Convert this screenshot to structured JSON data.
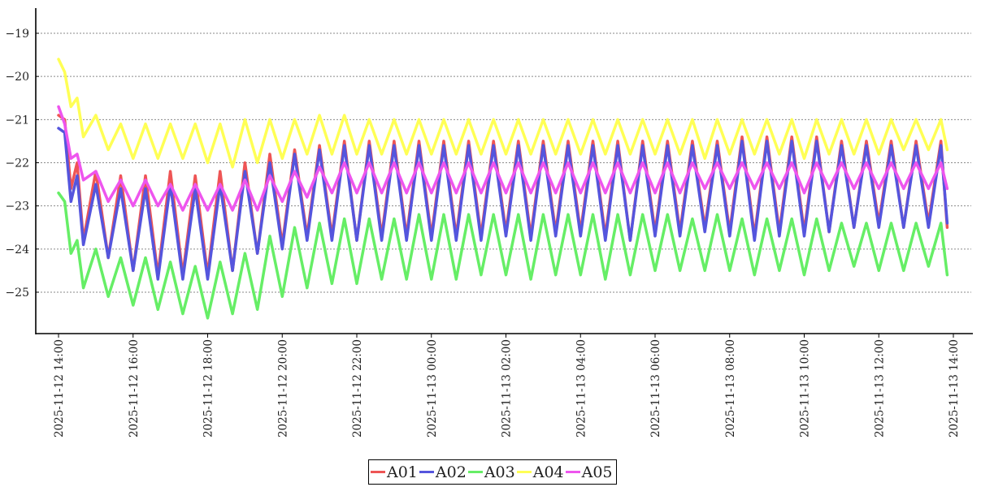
{
  "chart_data": {
    "type": "line",
    "title": "",
    "xlabel": "",
    "ylabel": "",
    "x_range": [
      "2025-11-12 14:00",
      "2025-11-13 14:00"
    ],
    "ylim": [
      -25.8,
      -18.4
    ],
    "yticks": [
      -19,
      -20,
      -21,
      -22,
      -23,
      -24,
      -25
    ],
    "ytick_labels": [
      "−19",
      "−20",
      "−21",
      "−22",
      "−23",
      "−24",
      "−25"
    ],
    "xticks": [
      "2025-11-12 14:00",
      "2025-11-12 16:00",
      "2025-11-12 18:00",
      "2025-11-12 20:00",
      "2025-11-12 22:00",
      "2025-11-13 00:00",
      "2025-11-13 02:00",
      "2025-11-13 04:00",
      "2025-11-13 06:00",
      "2025-11-13 08:00",
      "2025-11-13 10:00",
      "2025-11-13 12:00",
      "2025-11-13 14:00"
    ],
    "xtick_labels": [
      "2025-11-12 14:00",
      "2025-11-12 16:00",
      "2025-11-12 18:00",
      "2025-11-12 20:00",
      "2025-11-12 22:00",
      "2025-11-13 00:00",
      "2025-11-13 02:00",
      "2025-11-13 04:00",
      "2025-11-13 06:00",
      "2025-11-13 08:00",
      "2025-11-13 10:00",
      "2025-11-13 12:00",
      "2025-11-13 14:00"
    ],
    "grid": "horizontal dashed",
    "legend_position": "bottom-center",
    "series": [
      {
        "name": "A01",
        "color": "#ee5555",
        "x": [
          "2025-11-12 14:00",
          "2025-11-12 14:10",
          "2025-11-12 14:20",
          "2025-11-12 14:30",
          "2025-11-12 14:40",
          "2025-11-12 15:00",
          "2025-11-12 15:20",
          "2025-11-12 15:40",
          "2025-11-12 16:00",
          "2025-11-12 16:20",
          "2025-11-12 16:40",
          "2025-11-12 17:00",
          "2025-11-12 17:20",
          "2025-11-12 17:40",
          "2025-11-12 18:00",
          "2025-11-12 18:20",
          "2025-11-12 18:40",
          "2025-11-12 19:00",
          "2025-11-12 19:20",
          "2025-11-12 19:40",
          "2025-11-12 20:00",
          "2025-11-12 20:20",
          "2025-11-12 20:40",
          "2025-11-12 21:00",
          "2025-11-12 21:20",
          "2025-11-12 21:40",
          "2025-11-12 22:00",
          "2025-11-12 22:20",
          "2025-11-12 22:40",
          "2025-11-12 23:00",
          "2025-11-12 23:20",
          "2025-11-12 23:40",
          "2025-11-13 00:00",
          "2025-11-13 00:20",
          "2025-11-13 00:40",
          "2025-11-13 01:00",
          "2025-11-13 01:20",
          "2025-11-13 01:40",
          "2025-11-13 02:00",
          "2025-11-13 02:20",
          "2025-11-13 02:40",
          "2025-11-13 03:00",
          "2025-11-13 03:20",
          "2025-11-13 03:40",
          "2025-11-13 04:00",
          "2025-11-13 04:20",
          "2025-11-13 04:40",
          "2025-11-13 05:00",
          "2025-11-13 05:20",
          "2025-11-13 05:40",
          "2025-11-13 06:00",
          "2025-11-13 06:20",
          "2025-11-13 06:40",
          "2025-11-13 07:00",
          "2025-11-13 07:20",
          "2025-11-13 07:40",
          "2025-11-13 08:00",
          "2025-11-13 08:20",
          "2025-11-13 08:40",
          "2025-11-13 09:00",
          "2025-11-13 09:20",
          "2025-11-13 09:40",
          "2025-11-13 10:00",
          "2025-11-13 10:20",
          "2025-11-13 10:40",
          "2025-11-13 11:00",
          "2025-11-13 11:20",
          "2025-11-13 11:40",
          "2025-11-13 12:00",
          "2025-11-13 12:20",
          "2025-11-13 12:40",
          "2025-11-13 13:00",
          "2025-11-13 13:20",
          "2025-11-13 13:40",
          "2025-11-13 13:50"
        ],
        "values": [
          -20.9,
          -21.0,
          -22.6,
          -22.0,
          -23.8,
          -22.2,
          -24.2,
          -22.3,
          -24.5,
          -22.3,
          -24.6,
          -22.2,
          -24.6,
          -22.3,
          -24.6,
          -22.2,
          -24.5,
          -22.0,
          -24.1,
          -21.8,
          -23.9,
          -21.7,
          -23.7,
          -21.6,
          -23.7,
          -21.5,
          -23.8,
          -21.5,
          -23.7,
          -21.5,
          -23.7,
          -21.5,
          -23.7,
          -21.5,
          -23.7,
          -21.5,
          -23.7,
          -21.5,
          -23.6,
          -21.5,
          -23.7,
          -21.5,
          -23.6,
          -21.5,
          -23.6,
          -21.5,
          -23.7,
          -21.5,
          -23.8,
          -21.5,
          -23.6,
          -21.5,
          -23.6,
          -21.5,
          -23.5,
          -21.5,
          -23.6,
          -21.4,
          -23.7,
          -21.4,
          -23.6,
          -21.4,
          -23.6,
          -21.4,
          -23.6,
          -21.5,
          -23.5,
          -21.5,
          -23.4,
          -21.5,
          -23.5,
          -21.5,
          -23.4,
          -21.5,
          -23.5
        ]
      },
      {
        "name": "A02",
        "color": "#5555dd",
        "x": [
          "2025-11-12 14:00",
          "2025-11-12 14:10",
          "2025-11-12 14:20",
          "2025-11-12 14:30",
          "2025-11-12 14:40",
          "2025-11-12 15:00",
          "2025-11-12 15:20",
          "2025-11-12 15:40",
          "2025-11-12 16:00",
          "2025-11-12 16:20",
          "2025-11-12 16:40",
          "2025-11-12 17:00",
          "2025-11-12 17:20",
          "2025-11-12 17:40",
          "2025-11-12 18:00",
          "2025-11-12 18:20",
          "2025-11-12 18:40",
          "2025-11-12 19:00",
          "2025-11-12 19:20",
          "2025-11-12 19:40",
          "2025-11-12 20:00",
          "2025-11-12 20:20",
          "2025-11-12 20:40",
          "2025-11-12 21:00",
          "2025-11-12 21:20",
          "2025-11-12 21:40",
          "2025-11-12 22:00",
          "2025-11-12 22:20",
          "2025-11-12 22:40",
          "2025-11-12 23:00",
          "2025-11-12 23:20",
          "2025-11-12 23:40",
          "2025-11-13 00:00",
          "2025-11-13 00:20",
          "2025-11-13 00:40",
          "2025-11-13 01:00",
          "2025-11-13 01:20",
          "2025-11-13 01:40",
          "2025-11-13 02:00",
          "2025-11-13 02:20",
          "2025-11-13 02:40",
          "2025-11-13 03:00",
          "2025-11-13 03:20",
          "2025-11-13 03:40",
          "2025-11-13 04:00",
          "2025-11-13 04:20",
          "2025-11-13 04:40",
          "2025-11-13 05:00",
          "2025-11-13 05:20",
          "2025-11-13 05:40",
          "2025-11-13 06:00",
          "2025-11-13 06:20",
          "2025-11-13 06:40",
          "2025-11-13 07:00",
          "2025-11-13 07:20",
          "2025-11-13 07:40",
          "2025-11-13 08:00",
          "2025-11-13 08:20",
          "2025-11-13 08:40",
          "2025-11-13 09:00",
          "2025-11-13 09:20",
          "2025-11-13 09:40",
          "2025-11-13 10:00",
          "2025-11-13 10:20",
          "2025-11-13 10:40",
          "2025-11-13 11:00",
          "2025-11-13 11:20",
          "2025-11-13 11:40",
          "2025-11-13 12:00",
          "2025-11-13 12:20",
          "2025-11-13 12:40",
          "2025-11-13 13:00",
          "2025-11-13 13:20",
          "2025-11-13 13:40",
          "2025-11-13 13:50"
        ],
        "values": [
          -21.2,
          -21.3,
          -22.9,
          -22.3,
          -23.9,
          -22.5,
          -24.2,
          -22.6,
          -24.5,
          -22.6,
          -24.7,
          -22.5,
          -24.7,
          -22.6,
          -24.7,
          -22.5,
          -24.5,
          -22.2,
          -24.1,
          -22.0,
          -24.0,
          -21.8,
          -23.8,
          -21.7,
          -23.8,
          -21.6,
          -23.8,
          -21.6,
          -23.8,
          -21.6,
          -23.8,
          -21.6,
          -23.8,
          -21.6,
          -23.8,
          -21.6,
          -23.8,
          -21.6,
          -23.7,
          -21.6,
          -23.8,
          -21.6,
          -23.7,
          -21.6,
          -23.7,
          -21.6,
          -23.8,
          -21.6,
          -23.8,
          -21.6,
          -23.7,
          -21.6,
          -23.7,
          -21.6,
          -23.6,
          -21.6,
          -23.7,
          -21.5,
          -23.8,
          -21.5,
          -23.7,
          -21.5,
          -23.7,
          -21.5,
          -23.6,
          -21.6,
          -23.5,
          -21.6,
          -23.5,
          -21.6,
          -23.5,
          -21.6,
          -23.5,
          -21.6,
          -23.4
        ]
      },
      {
        "name": "A03",
        "color": "#66ee66",
        "x": [
          "2025-11-12 14:00",
          "2025-11-12 14:10",
          "2025-11-12 14:20",
          "2025-11-12 14:30",
          "2025-11-12 14:40",
          "2025-11-12 15:00",
          "2025-11-12 15:20",
          "2025-11-12 15:40",
          "2025-11-12 16:00",
          "2025-11-12 16:20",
          "2025-11-12 16:40",
          "2025-11-12 17:00",
          "2025-11-12 17:20",
          "2025-11-12 17:40",
          "2025-11-12 18:00",
          "2025-11-12 18:20",
          "2025-11-12 18:40",
          "2025-11-12 19:00",
          "2025-11-12 19:20",
          "2025-11-12 19:40",
          "2025-11-12 20:00",
          "2025-11-12 20:20",
          "2025-11-12 20:40",
          "2025-11-12 21:00",
          "2025-11-12 21:20",
          "2025-11-12 21:40",
          "2025-11-12 22:00",
          "2025-11-12 22:20",
          "2025-11-12 22:40",
          "2025-11-12 23:00",
          "2025-11-12 23:20",
          "2025-11-12 23:40",
          "2025-11-13 00:00",
          "2025-11-13 00:20",
          "2025-11-13 00:40",
          "2025-11-13 01:00",
          "2025-11-13 01:20",
          "2025-11-13 01:40",
          "2025-11-13 02:00",
          "2025-11-13 02:20",
          "2025-11-13 02:40",
          "2025-11-13 03:00",
          "2025-11-13 03:20",
          "2025-11-13 03:40",
          "2025-11-13 04:00",
          "2025-11-13 04:20",
          "2025-11-13 04:40",
          "2025-11-13 05:00",
          "2025-11-13 05:20",
          "2025-11-13 05:40",
          "2025-11-13 06:00",
          "2025-11-13 06:20",
          "2025-11-13 06:40",
          "2025-11-13 07:00",
          "2025-11-13 07:20",
          "2025-11-13 07:40",
          "2025-11-13 08:00",
          "2025-11-13 08:20",
          "2025-11-13 08:40",
          "2025-11-13 09:00",
          "2025-11-13 09:20",
          "2025-11-13 09:40",
          "2025-11-13 10:00",
          "2025-11-13 10:20",
          "2025-11-13 10:40",
          "2025-11-13 11:00",
          "2025-11-13 11:20",
          "2025-11-13 11:40",
          "2025-11-13 12:00",
          "2025-11-13 12:20",
          "2025-11-13 12:40",
          "2025-11-13 13:00",
          "2025-11-13 13:20",
          "2025-11-13 13:40",
          "2025-11-13 13:50"
        ],
        "values": [
          -22.7,
          -22.9,
          -24.1,
          -23.8,
          -24.9,
          -24.0,
          -25.1,
          -24.2,
          -25.3,
          -24.2,
          -25.4,
          -24.3,
          -25.5,
          -24.4,
          -25.6,
          -24.3,
          -25.5,
          -24.1,
          -25.4,
          -23.7,
          -25.1,
          -23.5,
          -24.9,
          -23.4,
          -24.8,
          -23.3,
          -24.8,
          -23.3,
          -24.7,
          -23.3,
          -24.7,
          -23.2,
          -24.7,
          -23.2,
          -24.7,
          -23.2,
          -24.6,
          -23.2,
          -24.6,
          -23.2,
          -24.7,
          -23.2,
          -24.6,
          -23.2,
          -24.6,
          -23.2,
          -24.7,
          -23.2,
          -24.6,
          -23.2,
          -24.5,
          -23.2,
          -24.5,
          -23.3,
          -24.5,
          -23.2,
          -24.5,
          -23.3,
          -24.6,
          -23.3,
          -24.5,
          -23.3,
          -24.6,
          -23.3,
          -24.5,
          -23.4,
          -24.4,
          -23.4,
          -24.5,
          -23.4,
          -24.5,
          -23.4,
          -24.4,
          -23.4,
          -24.6
        ]
      },
      {
        "name": "A04",
        "color": "#ffff55",
        "x": [
          "2025-11-12 14:00",
          "2025-11-12 14:10",
          "2025-11-12 14:20",
          "2025-11-12 14:30",
          "2025-11-12 14:40",
          "2025-11-12 15:00",
          "2025-11-12 15:20",
          "2025-11-12 15:40",
          "2025-11-12 16:00",
          "2025-11-12 16:20",
          "2025-11-12 16:40",
          "2025-11-12 17:00",
          "2025-11-12 17:20",
          "2025-11-12 17:40",
          "2025-11-12 18:00",
          "2025-11-12 18:20",
          "2025-11-12 18:40",
          "2025-11-12 19:00",
          "2025-11-12 19:20",
          "2025-11-12 19:40",
          "2025-11-12 20:00",
          "2025-11-12 20:20",
          "2025-11-12 20:40",
          "2025-11-12 21:00",
          "2025-11-12 21:20",
          "2025-11-12 21:40",
          "2025-11-12 22:00",
          "2025-11-12 22:20",
          "2025-11-12 22:40",
          "2025-11-12 23:00",
          "2025-11-12 23:20",
          "2025-11-12 23:40",
          "2025-11-13 00:00",
          "2025-11-13 00:20",
          "2025-11-13 00:40",
          "2025-11-13 01:00",
          "2025-11-13 01:20",
          "2025-11-13 01:40",
          "2025-11-13 02:00",
          "2025-11-13 02:20",
          "2025-11-13 02:40",
          "2025-11-13 03:00",
          "2025-11-13 03:20",
          "2025-11-13 03:40",
          "2025-11-13 04:00",
          "2025-11-13 04:20",
          "2025-11-13 04:40",
          "2025-11-13 05:00",
          "2025-11-13 05:20",
          "2025-11-13 05:40",
          "2025-11-13 06:00",
          "2025-11-13 06:20",
          "2025-11-13 06:40",
          "2025-11-13 07:00",
          "2025-11-13 07:20",
          "2025-11-13 07:40",
          "2025-11-13 08:00",
          "2025-11-13 08:20",
          "2025-11-13 08:40",
          "2025-11-13 09:00",
          "2025-11-13 09:20",
          "2025-11-13 09:40",
          "2025-11-13 10:00",
          "2025-11-13 10:20",
          "2025-11-13 10:40",
          "2025-11-13 11:00",
          "2025-11-13 11:20",
          "2025-11-13 11:40",
          "2025-11-13 12:00",
          "2025-11-13 12:20",
          "2025-11-13 12:40",
          "2025-11-13 13:00",
          "2025-11-13 13:20",
          "2025-11-13 13:40",
          "2025-11-13 13:50"
        ],
        "values": [
          -19.6,
          -19.9,
          -20.7,
          -20.5,
          -21.4,
          -20.9,
          -21.7,
          -21.1,
          -21.9,
          -21.1,
          -21.9,
          -21.1,
          -21.9,
          -21.1,
          -22.0,
          -21.1,
          -22.1,
          -21.0,
          -22.0,
          -21.0,
          -21.9,
          -21.0,
          -21.8,
          -20.9,
          -21.8,
          -20.9,
          -21.8,
          -21.0,
          -21.8,
          -21.0,
          -21.8,
          -21.0,
          -21.8,
          -21.0,
          -21.8,
          -21.0,
          -21.8,
          -21.0,
          -21.8,
          -21.0,
          -21.8,
          -21.0,
          -21.8,
          -21.0,
          -21.8,
          -21.0,
          -21.8,
          -21.0,
          -21.8,
          -21.0,
          -21.8,
          -21.0,
          -21.8,
          -21.0,
          -21.9,
          -21.0,
          -21.8,
          -21.0,
          -21.8,
          -21.0,
          -21.8,
          -21.0,
          -21.9,
          -21.0,
          -21.8,
          -21.0,
          -21.8,
          -21.0,
          -21.8,
          -21.0,
          -21.7,
          -21.0,
          -21.7,
          -21.0,
          -21.7
        ]
      },
      {
        "name": "A05",
        "color": "#ee55ee",
        "x": [
          "2025-11-12 14:00",
          "2025-11-12 14:10",
          "2025-11-12 14:20",
          "2025-11-12 14:30",
          "2025-11-12 14:40",
          "2025-11-12 15:00",
          "2025-11-12 15:20",
          "2025-11-12 15:40",
          "2025-11-12 16:00",
          "2025-11-12 16:20",
          "2025-11-12 16:40",
          "2025-11-12 17:00",
          "2025-11-12 17:20",
          "2025-11-12 17:40",
          "2025-11-12 18:00",
          "2025-11-12 18:20",
          "2025-11-12 18:40",
          "2025-11-12 19:00",
          "2025-11-12 19:20",
          "2025-11-12 19:40",
          "2025-11-12 20:00",
          "2025-11-12 20:20",
          "2025-11-12 20:40",
          "2025-11-12 21:00",
          "2025-11-12 21:20",
          "2025-11-12 21:40",
          "2025-11-12 22:00",
          "2025-11-12 22:20",
          "2025-11-12 22:40",
          "2025-11-12 23:00",
          "2025-11-12 23:20",
          "2025-11-12 23:40",
          "2025-11-13 00:00",
          "2025-11-13 00:20",
          "2025-11-13 00:40",
          "2025-11-13 01:00",
          "2025-11-13 01:20",
          "2025-11-13 01:40",
          "2025-11-13 02:00",
          "2025-11-13 02:20",
          "2025-11-13 02:40",
          "2025-11-13 03:00",
          "2025-11-13 03:20",
          "2025-11-13 03:40",
          "2025-11-13 04:00",
          "2025-11-13 04:20",
          "2025-11-13 04:40",
          "2025-11-13 05:00",
          "2025-11-13 05:20",
          "2025-11-13 05:40",
          "2025-11-13 06:00",
          "2025-11-13 06:20",
          "2025-11-13 06:40",
          "2025-11-13 07:00",
          "2025-11-13 07:20",
          "2025-11-13 07:40",
          "2025-11-13 08:00",
          "2025-11-13 08:20",
          "2025-11-13 08:40",
          "2025-11-13 09:00",
          "2025-11-13 09:20",
          "2025-11-13 09:40",
          "2025-11-13 10:00",
          "2025-11-13 10:20",
          "2025-11-13 10:40",
          "2025-11-13 11:00",
          "2025-11-13 11:20",
          "2025-11-13 11:40",
          "2025-11-13 12:00",
          "2025-11-13 12:20",
          "2025-11-13 12:40",
          "2025-11-13 13:00",
          "2025-11-13 13:20",
          "2025-11-13 13:40",
          "2025-11-13 13:50"
        ],
        "values": [
          -20.7,
          -21.1,
          -21.9,
          -21.8,
          -22.4,
          -22.2,
          -22.9,
          -22.4,
          -23.0,
          -22.4,
          -23.0,
          -22.5,
          -23.1,
          -22.5,
          -23.1,
          -22.5,
          -23.1,
          -22.4,
          -23.1,
          -22.3,
          -22.9,
          -22.2,
          -22.8,
          -22.1,
          -22.7,
          -22.0,
          -22.7,
          -22.0,
          -22.7,
          -22.0,
          -22.7,
          -22.0,
          -22.7,
          -22.0,
          -22.7,
          -22.0,
          -22.7,
          -22.0,
          -22.7,
          -22.0,
          -22.7,
          -22.0,
          -22.7,
          -22.0,
          -22.7,
          -22.0,
          -22.7,
          -22.0,
          -22.7,
          -22.0,
          -22.7,
          -22.0,
          -22.7,
          -22.0,
          -22.6,
          -22.0,
          -22.6,
          -22.0,
          -22.6,
          -22.0,
          -22.6,
          -22.0,
          -22.7,
          -22.0,
          -22.6,
          -22.0,
          -22.6,
          -22.0,
          -22.6,
          -22.0,
          -22.6,
          -22.0,
          -22.6,
          -22.0,
          -22.6
        ]
      }
    ]
  }
}
